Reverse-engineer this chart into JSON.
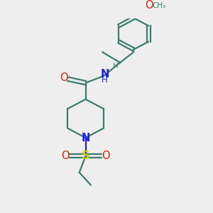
{
  "bg_color": "#eeeeee",
  "bond_color": "#3a7d6e",
  "N_color": "#2020dd",
  "O_color": "#cc2200",
  "S_color": "#cccc00",
  "font_size": 8.5,
  "line_width": 1.6,
  "figsize": [
    3.0,
    3.0
  ],
  "dpi": 100,
  "xlim": [
    0,
    10
  ],
  "ylim": [
    0,
    10
  ]
}
